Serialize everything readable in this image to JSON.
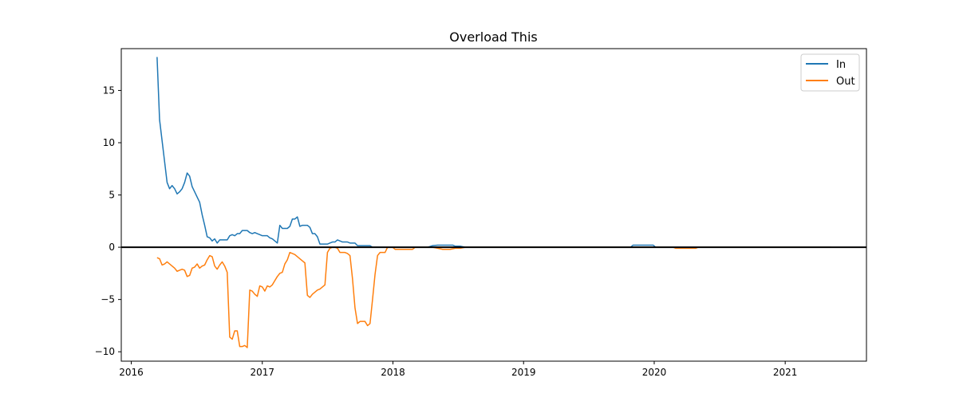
{
  "chart_data": {
    "type": "line",
    "title": "Overload This",
    "xlabel": "",
    "ylabel": "",
    "x_axis_kind": "date",
    "xlim": [
      "2015-12-04",
      "2021-08-16"
    ],
    "ylim": [
      -10.9,
      19.0
    ],
    "x_ticks": [
      "2016",
      "2017",
      "2018",
      "2019",
      "2020",
      "2021"
    ],
    "y_ticks": [
      -10,
      -5,
      0,
      5,
      10,
      15
    ],
    "y_tick_labels": [
      "−10",
      "−5",
      "0",
      "5",
      "10",
      "15"
    ],
    "grid": false,
    "legend_position": "top-right",
    "baseline": 0,
    "baseline_color": "#000000",
    "series": [
      {
        "name": "In",
        "color": "#1f77b4",
        "points": [
          [
            "2016-03-13",
            18.2
          ],
          [
            "2016-03-20",
            12.2
          ],
          [
            "2016-03-27",
            10.2
          ],
          [
            "2016-04-03",
            8.2
          ],
          [
            "2016-04-10",
            6.2
          ],
          [
            "2016-04-17",
            5.6
          ],
          [
            "2016-04-24",
            5.9
          ],
          [
            "2016-05-01",
            5.6
          ],
          [
            "2016-05-08",
            5.1
          ],
          [
            "2016-05-15",
            5.3
          ],
          [
            "2016-05-22",
            5.6
          ],
          [
            "2016-05-29",
            6.2
          ],
          [
            "2016-06-05",
            7.1
          ],
          [
            "2016-06-12",
            6.8
          ],
          [
            "2016-06-19",
            5.8
          ],
          [
            "2016-06-26",
            5.3
          ],
          [
            "2016-07-03",
            4.8
          ],
          [
            "2016-07-10",
            4.3
          ],
          [
            "2016-07-17",
            3.1
          ],
          [
            "2016-07-24",
            2.1
          ],
          [
            "2016-07-31",
            1.0
          ],
          [
            "2016-08-07",
            0.9
          ],
          [
            "2016-08-14",
            0.6
          ],
          [
            "2016-08-21",
            0.8
          ],
          [
            "2016-08-28",
            0.4
          ],
          [
            "2016-09-04",
            0.7
          ],
          [
            "2016-09-11",
            0.7
          ],
          [
            "2016-09-18",
            0.7
          ],
          [
            "2016-09-25",
            0.7
          ],
          [
            "2016-10-02",
            1.1
          ],
          [
            "2016-10-09",
            1.2
          ],
          [
            "2016-10-16",
            1.1
          ],
          [
            "2016-10-23",
            1.3
          ],
          [
            "2016-10-30",
            1.3
          ],
          [
            "2016-11-06",
            1.6
          ],
          [
            "2016-11-13",
            1.6
          ],
          [
            "2016-11-20",
            1.6
          ],
          [
            "2016-11-27",
            1.4
          ],
          [
            "2016-12-04",
            1.3
          ],
          [
            "2016-12-11",
            1.4
          ],
          [
            "2016-12-18",
            1.3
          ],
          [
            "2016-12-25",
            1.2
          ],
          [
            "2017-01-01",
            1.1
          ],
          [
            "2017-01-08",
            1.1
          ],
          [
            "2017-01-15",
            1.1
          ],
          [
            "2017-01-22",
            0.9
          ],
          [
            "2017-01-29",
            0.8
          ],
          [
            "2017-02-05",
            0.6
          ],
          [
            "2017-02-12",
            0.4
          ],
          [
            "2017-02-19",
            2.1
          ],
          [
            "2017-02-26",
            1.8
          ],
          [
            "2017-03-05",
            1.8
          ],
          [
            "2017-03-12",
            1.8
          ],
          [
            "2017-03-19",
            2.0
          ],
          [
            "2017-03-26",
            2.7
          ],
          [
            "2017-04-02",
            2.7
          ],
          [
            "2017-04-09",
            2.9
          ],
          [
            "2017-04-16",
            2.0
          ],
          [
            "2017-04-23",
            2.1
          ],
          [
            "2017-04-30",
            2.1
          ],
          [
            "2017-05-07",
            2.1
          ],
          [
            "2017-05-14",
            1.9
          ],
          [
            "2017-05-21",
            1.3
          ],
          [
            "2017-05-28",
            1.3
          ],
          [
            "2017-06-04",
            1.0
          ],
          [
            "2017-06-11",
            0.3
          ],
          [
            "2017-06-18",
            0.3
          ],
          [
            "2017-06-25",
            0.3
          ],
          [
            "2017-07-02",
            0.3
          ],
          [
            "2017-07-09",
            0.4
          ],
          [
            "2017-07-16",
            0.5
          ],
          [
            "2017-07-23",
            0.5
          ],
          [
            "2017-07-30",
            0.7
          ],
          [
            "2017-08-06",
            0.6
          ],
          [
            "2017-08-13",
            0.5
          ],
          [
            "2017-08-20",
            0.5
          ],
          [
            "2017-08-27",
            0.5
          ],
          [
            "2017-09-03",
            0.4
          ],
          [
            "2017-09-10",
            0.4
          ],
          [
            "2017-09-17",
            0.4
          ],
          [
            "2017-09-24",
            0.15
          ],
          [
            "2017-10-15",
            0.15
          ],
          [
            "2017-10-29",
            0.15
          ],
          [
            "2017-11-05",
            0.0
          ],
          [
            "2018-04-08",
            0.0
          ],
          [
            "2018-04-22",
            0.15
          ],
          [
            "2018-05-06",
            0.2
          ],
          [
            "2018-06-17",
            0.2
          ],
          [
            "2018-06-24",
            0.1
          ],
          [
            "2018-07-08",
            0.1
          ],
          [
            "2018-07-22",
            0.0
          ],
          [
            "2019-10-27",
            0.0
          ],
          [
            "2019-11-03",
            0.2
          ],
          [
            "2019-12-29",
            0.2
          ],
          [
            "2020-01-05",
            0.0
          ],
          [
            "2021-05-09",
            0.0
          ]
        ]
      },
      {
        "name": "Out",
        "color": "#ff7f0e",
        "points": [
          [
            "2016-03-13",
            -1.0
          ],
          [
            "2016-03-20",
            -1.1
          ],
          [
            "2016-03-27",
            -1.7
          ],
          [
            "2016-04-03",
            -1.6
          ],
          [
            "2016-04-10",
            -1.4
          ],
          [
            "2016-04-17",
            -1.6
          ],
          [
            "2016-04-24",
            -1.8
          ],
          [
            "2016-05-01",
            -2.0
          ],
          [
            "2016-05-08",
            -2.3
          ],
          [
            "2016-05-15",
            -2.2
          ],
          [
            "2016-05-22",
            -2.1
          ],
          [
            "2016-05-29",
            -2.2
          ],
          [
            "2016-06-05",
            -2.8
          ],
          [
            "2016-06-12",
            -2.7
          ],
          [
            "2016-06-19",
            -2.0
          ],
          [
            "2016-06-26",
            -1.9
          ],
          [
            "2016-07-03",
            -1.6
          ],
          [
            "2016-07-10",
            -2.0
          ],
          [
            "2016-07-17",
            -1.8
          ],
          [
            "2016-07-24",
            -1.7
          ],
          [
            "2016-07-31",
            -1.2
          ],
          [
            "2016-08-07",
            -0.8
          ],
          [
            "2016-08-14",
            -0.9
          ],
          [
            "2016-08-21",
            -1.8
          ],
          [
            "2016-08-28",
            -2.1
          ],
          [
            "2016-09-04",
            -1.7
          ],
          [
            "2016-09-11",
            -1.4
          ],
          [
            "2016-09-18",
            -1.8
          ],
          [
            "2016-09-25",
            -2.4
          ],
          [
            "2016-10-02",
            -8.6
          ],
          [
            "2016-10-09",
            -8.8
          ],
          [
            "2016-10-16",
            -8.0
          ],
          [
            "2016-10-23",
            -8.0
          ],
          [
            "2016-10-30",
            -9.5
          ],
          [
            "2016-11-06",
            -9.5
          ],
          [
            "2016-11-13",
            -9.4
          ],
          [
            "2016-11-20",
            -9.6
          ],
          [
            "2016-11-27",
            -4.1
          ],
          [
            "2016-12-04",
            -4.2
          ],
          [
            "2016-12-11",
            -4.5
          ],
          [
            "2016-12-18",
            -4.7
          ],
          [
            "2016-12-25",
            -3.7
          ],
          [
            "2017-01-01",
            -3.8
          ],
          [
            "2017-01-08",
            -4.2
          ],
          [
            "2017-01-15",
            -3.7
          ],
          [
            "2017-01-22",
            -3.8
          ],
          [
            "2017-01-29",
            -3.6
          ],
          [
            "2017-02-05",
            -3.2
          ],
          [
            "2017-02-12",
            -2.8
          ],
          [
            "2017-02-19",
            -2.5
          ],
          [
            "2017-02-26",
            -2.4
          ],
          [
            "2017-03-05",
            -1.6
          ],
          [
            "2017-03-12",
            -1.2
          ],
          [
            "2017-03-19",
            -0.5
          ],
          [
            "2017-03-26",
            -0.6
          ],
          [
            "2017-04-02",
            -0.7
          ],
          [
            "2017-04-09",
            -0.9
          ],
          [
            "2017-04-16",
            -1.1
          ],
          [
            "2017-04-23",
            -1.3
          ],
          [
            "2017-04-30",
            -1.5
          ],
          [
            "2017-05-07",
            -4.6
          ],
          [
            "2017-05-14",
            -4.8
          ],
          [
            "2017-05-21",
            -4.5
          ],
          [
            "2017-05-28",
            -4.3
          ],
          [
            "2017-06-04",
            -4.1
          ],
          [
            "2017-06-11",
            -4.0
          ],
          [
            "2017-06-18",
            -3.8
          ],
          [
            "2017-06-25",
            -3.6
          ],
          [
            "2017-07-02",
            -0.5
          ],
          [
            "2017-07-09",
            -0.1
          ],
          [
            "2017-07-16",
            0.0
          ],
          [
            "2017-07-23",
            0.0
          ],
          [
            "2017-07-30",
            -0.1
          ],
          [
            "2017-08-06",
            -0.5
          ],
          [
            "2017-08-13",
            -0.5
          ],
          [
            "2017-08-20",
            -0.5
          ],
          [
            "2017-08-27",
            -0.6
          ],
          [
            "2017-09-03",
            -0.8
          ],
          [
            "2017-09-10",
            -3.0
          ],
          [
            "2017-09-17",
            -5.8
          ],
          [
            "2017-09-24",
            -7.3
          ],
          [
            "2017-10-01",
            -7.1
          ],
          [
            "2017-10-08",
            -7.1
          ],
          [
            "2017-10-15",
            -7.1
          ],
          [
            "2017-10-22",
            -7.5
          ],
          [
            "2017-10-29",
            -7.3
          ],
          [
            "2017-11-05",
            -5.0
          ],
          [
            "2017-11-12",
            -2.6
          ],
          [
            "2017-11-19",
            -0.8
          ],
          [
            "2017-11-26",
            -0.5
          ],
          [
            "2017-12-03",
            -0.5
          ],
          [
            "2017-12-10",
            -0.5
          ],
          [
            "2017-12-17",
            0.0
          ],
          [
            "2017-12-31",
            0.0
          ],
          [
            "2018-01-07",
            -0.2
          ],
          [
            "2018-02-04",
            -0.2
          ],
          [
            "2018-02-25",
            -0.2
          ],
          [
            "2018-03-04",
            0.0
          ],
          [
            "2018-04-22",
            0.0
          ],
          [
            "2018-05-06",
            -0.1
          ],
          [
            "2018-05-20",
            -0.2
          ],
          [
            "2018-06-10",
            -0.2
          ],
          [
            "2018-06-24",
            -0.1
          ],
          [
            "2018-07-08",
            -0.1
          ],
          [
            "2018-07-22",
            0.0
          ],
          [
            "2020-02-23",
            0.0
          ],
          [
            "2020-03-01",
            -0.1
          ],
          [
            "2020-04-26",
            -0.1
          ],
          [
            "2020-05-03",
            0.0
          ],
          [
            "2021-05-09",
            0.0
          ]
        ]
      }
    ]
  }
}
